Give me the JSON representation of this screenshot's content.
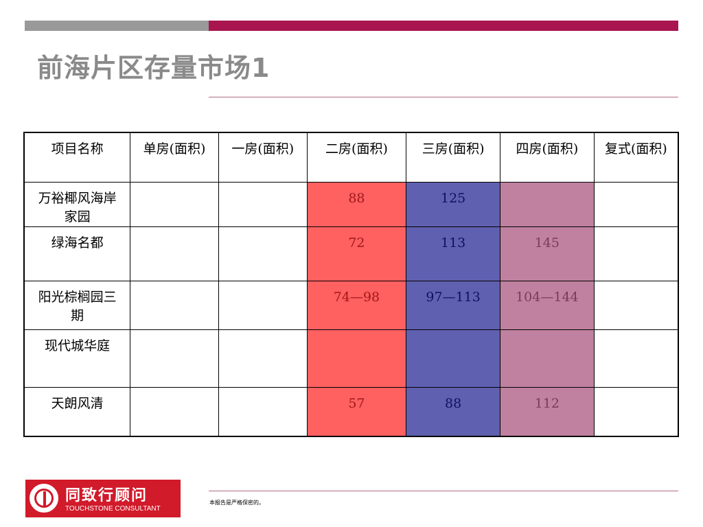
{
  "slide": {
    "title": "前海片区存量市场1"
  },
  "colors": {
    "top_bar_gray": "#999999",
    "top_bar_accent": "#a8154f",
    "two_room_fill": "#ff6060",
    "three_room_fill": "#6060b0",
    "four_room_fill": "#c080a0"
  },
  "table": {
    "headers": [
      "项目名称",
      "单房(面积)",
      "一房(面积)",
      "二房(面积)",
      "三房(面积)",
      "四房(面积)",
      "复式(面积)"
    ],
    "rows": [
      {
        "name": "万裕椰风海岸家园",
        "studio": "",
        "one": "",
        "two": "88",
        "three": "125",
        "four": "",
        "duplex": ""
      },
      {
        "name": "绿海名都",
        "studio": "",
        "one": "",
        "two": "72",
        "three": "113",
        "four": "145",
        "duplex": ""
      },
      {
        "name": "阳光棕榈园三期",
        "studio": "",
        "one": "",
        "two": "74—98",
        "three": "97—113",
        "four": "104—144",
        "duplex": ""
      },
      {
        "name": "现代城华庭",
        "studio": "",
        "one": "",
        "two": "",
        "three": "",
        "four": "",
        "duplex": ""
      },
      {
        "name": "天朗风清",
        "studio": "",
        "one": "",
        "two": "57",
        "three": "88",
        "four": "112",
        "duplex": ""
      }
    ]
  },
  "footer": {
    "note": "本报告是严格保密的。",
    "logo_name": "同致行顾问",
    "logo_sub": "TOUCHSTONE CONSULTANT",
    "logo_icon": "touchstone-emblem-icon"
  }
}
